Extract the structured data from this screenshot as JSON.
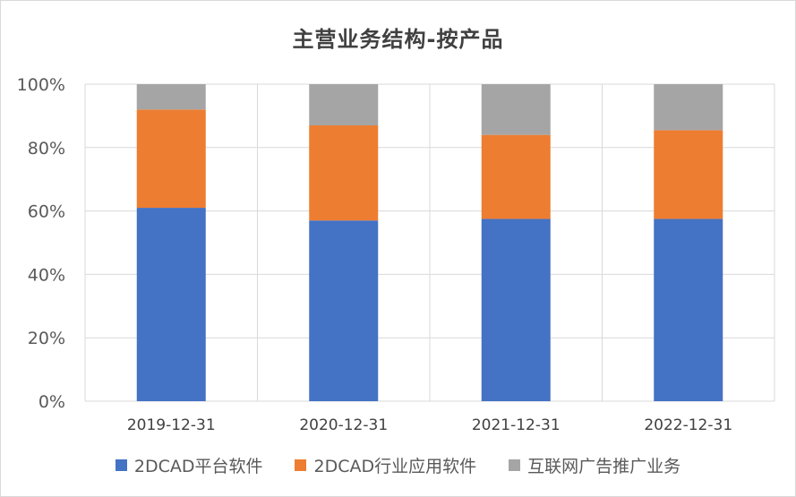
{
  "chart_data": {
    "type": "bar",
    "stacked": "percent",
    "title": "主营业务结构-按产品",
    "categories": [
      "2019-12-31",
      "2020-12-31",
      "2021-12-31",
      "2022-12-31"
    ],
    "series": [
      {
        "name": "2DCAD平台软件",
        "color": "#4472C4",
        "values": [
          61,
          57,
          57.5,
          57.5
        ]
      },
      {
        "name": "2DCAD行业应用软件",
        "color": "#ED7D31",
        "values": [
          31,
          30,
          26.5,
          28
        ]
      },
      {
        "name": "互联网广告推广业务",
        "color": "#A5A5A5",
        "values": [
          8,
          13,
          16,
          14.5
        ]
      }
    ],
    "y_ticks": [
      "0%",
      "20%",
      "40%",
      "60%",
      "80%",
      "100%"
    ],
    "ylim": [
      0,
      100
    ],
    "grid": true,
    "legend_position": "bottom"
  }
}
